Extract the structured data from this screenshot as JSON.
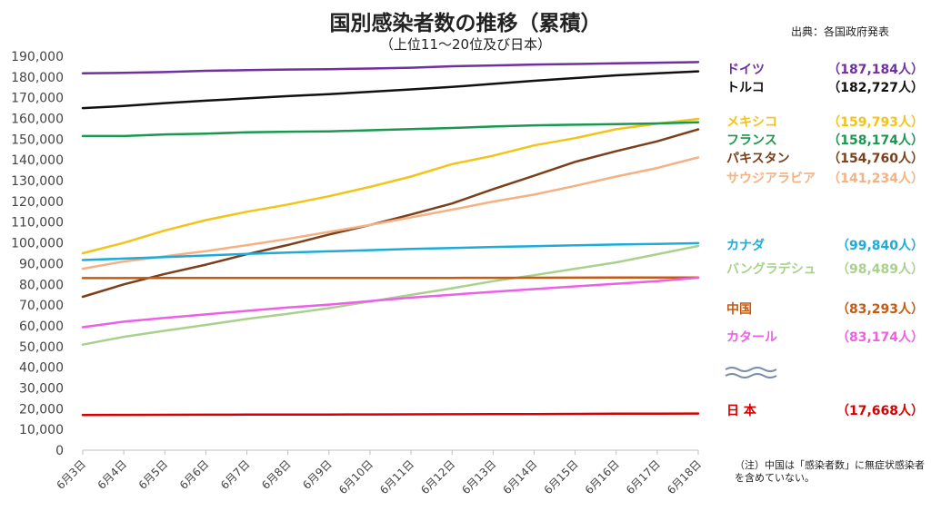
{
  "title": "国別感染者数の推移（累積）",
  "subtitle": "（上位11～20位及び日本）",
  "source": "出典：各国政府発表",
  "note": "（注）中国は「感染者数」に無症状感染者を含めていない。",
  "chart_data": {
    "type": "line",
    "title": "国別感染者数の推移（累積）",
    "subtitle": "（上位11～20位及び日本）",
    "xlabel": "",
    "ylabel": "",
    "ylim": [
      0,
      190000
    ],
    "y_ticks": [
      "0",
      "10,000",
      "20,000",
      "30,000",
      "40,000",
      "50,000",
      "60,000",
      "70,000",
      "80,000",
      "90,000",
      "100,000",
      "110,000",
      "120,000",
      "130,000",
      "140,000",
      "150,000",
      "160,000",
      "170,000",
      "180,000",
      "190,000"
    ],
    "grid": false,
    "legend": "right",
    "categories": [
      "6月3日",
      "6月4日",
      "6月5日",
      "6月6日",
      "6月7日",
      "6月8日",
      "6月9日",
      "6月10日",
      "6月11日",
      "6月12日",
      "6月13日",
      "6月14日",
      "6月15日",
      "6月16日",
      "6月17日",
      "6月18日"
    ],
    "series": [
      {
        "name": "ドイツ",
        "label": "（187,184人）",
        "color": "#7030a0",
        "values": [
          181800,
          182000,
          182400,
          183000,
          183300,
          183600,
          183800,
          184100,
          184500,
          185200,
          185600,
          186000,
          186300,
          186600,
          186900,
          187184
        ]
      },
      {
        "name": "トルコ",
        "label": "（182,727人）",
        "color": "#111111",
        "values": [
          165000,
          166000,
          167400,
          168600,
          169700,
          170800,
          171700,
          172900,
          174000,
          175200,
          176700,
          178200,
          179500,
          180800,
          181800,
          182727
        ]
      },
      {
        "name": "メキシコ",
        "label": "（159,793人）",
        "color": "#f2c419",
        "values": [
          95000,
          100000,
          106000,
          111000,
          115000,
          118500,
          122500,
          127000,
          132000,
          138000,
          142000,
          147000,
          150500,
          154800,
          157500,
          159793
        ]
      },
      {
        "name": "フランス",
        "label": "（158,174人）",
        "color": "#1a9850",
        "values": [
          151500,
          151500,
          152300,
          152700,
          153300,
          153600,
          153800,
          154300,
          154900,
          155400,
          156100,
          156700,
          157000,
          157300,
          157600,
          158174
        ]
      },
      {
        "name": "パキスタン",
        "label": "（154,760人）",
        "color": "#7b3f1a",
        "values": [
          74000,
          80000,
          85000,
          89500,
          94500,
          99000,
          104000,
          108600,
          113700,
          119000,
          125900,
          132400,
          139100,
          144200,
          149000,
          154760
        ]
      },
      {
        "name": "サウジアラビア",
        "label": "（141,234人）",
        "color": "#f4b183",
        "values": [
          87500,
          91000,
          93500,
          96000,
          98900,
          101900,
          105300,
          108600,
          112300,
          116000,
          119900,
          123300,
          127500,
          132000,
          136100,
          141234
        ]
      },
      {
        "name": "カナダ",
        "label": "（99,840人）",
        "color": "#1eabd9",
        "values": [
          91700,
          92400,
          93100,
          93900,
          94700,
          95300,
          95900,
          96500,
          97100,
          97500,
          98000,
          98400,
          98800,
          99200,
          99500,
          99840
        ]
      },
      {
        "name": "バングラデシュ",
        "label": "（98,489人）",
        "color": "#a9d18e",
        "values": [
          50900,
          54700,
          57600,
          60400,
          63300,
          65800,
          68500,
          71700,
          74900,
          78100,
          81500,
          84400,
          87500,
          90600,
          94500,
          98489
        ]
      },
      {
        "name": "中国",
        "label": "（83,293人）",
        "color": "#c55a11",
        "values": [
          83022,
          83022,
          83030,
          83036,
          83040,
          83043,
          83046,
          83057,
          83064,
          83075,
          83132,
          83181,
          83221,
          83265,
          83293,
          83293
        ]
      },
      {
        "name": "カタール",
        "label": "（83,174人）",
        "color": "#ec5fe6",
        "values": [
          59300,
          62000,
          63800,
          65500,
          67200,
          68800,
          70200,
          71900,
          73600,
          75000,
          76400,
          77700,
          79000,
          80300,
          81500,
          83174
        ]
      },
      {
        "name": "日本",
        "display_name": "日 本",
        "label": "（17,668人）",
        "color": "#d60000",
        "values": [
          16986,
          17018,
          17064,
          17103,
          17141,
          17174,
          17210,
          17251,
          17292,
          17332,
          17382,
          17439,
          17502,
          17587,
          17628,
          17668
        ]
      }
    ]
  }
}
